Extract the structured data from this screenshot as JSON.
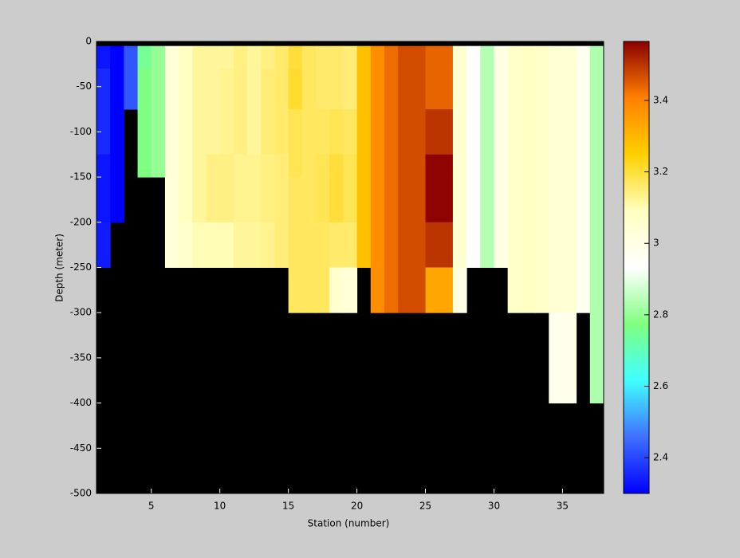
{
  "chart_data": {
    "type": "heatmap",
    "xlabel": "Station (number)",
    "ylabel": "Depth (meter)",
    "x_edges": [
      1,
      2,
      3,
      4,
      5,
      6,
      7,
      8,
      9,
      10,
      11,
      12,
      13,
      14,
      15,
      16,
      17,
      18,
      19,
      20,
      21,
      22,
      23,
      24,
      25,
      26,
      27,
      28,
      29,
      30,
      31,
      32,
      33,
      34,
      35,
      36,
      37,
      38
    ],
    "y_edges": [
      0,
      -5,
      -30,
      -75,
      -125,
      -150,
      -200,
      -250,
      -300,
      -400,
      -500
    ],
    "values": [
      [
        null,
        2.33,
        2.36,
        2.36,
        2.33,
        2.33,
        2.34,
        null,
        null,
        null
      ],
      [
        null,
        2.3,
        2.3,
        2.3,
        2.3,
        2.3,
        null,
        null,
        null,
        null
      ],
      [
        null,
        2.42,
        2.42,
        null,
        null,
        null,
        null,
        null,
        null,
        null
      ],
      [
        null,
        2.75,
        2.77,
        2.77,
        2.77,
        null,
        null,
        null,
        null,
        null
      ],
      [
        null,
        2.8,
        2.8,
        2.8,
        2.8,
        null,
        null,
        null,
        null,
        null
      ],
      [
        null,
        3.03,
        3.03,
        3.03,
        3.03,
        3.03,
        3.03,
        null,
        null,
        null
      ],
      [
        null,
        3.08,
        3.08,
        3.08,
        3.08,
        3.08,
        3.06,
        null,
        null,
        null
      ],
      [
        null,
        3.12,
        3.12,
        3.12,
        3.12,
        3.12,
        3.1,
        null,
        null,
        null
      ],
      [
        null,
        3.12,
        3.12,
        3.12,
        3.14,
        3.14,
        3.1,
        null,
        null,
        null
      ],
      [
        null,
        3.12,
        3.13,
        3.13,
        3.14,
        3.14,
        3.1,
        null,
        null,
        null
      ],
      [
        null,
        3.14,
        3.14,
        3.14,
        3.13,
        3.13,
        3.12,
        null,
        null,
        null
      ],
      [
        null,
        3.12,
        3.12,
        3.12,
        3.13,
        3.13,
        3.12,
        null,
        null,
        null
      ],
      [
        null,
        3.14,
        3.15,
        3.15,
        3.14,
        3.14,
        3.13,
        null,
        null,
        null
      ],
      [
        null,
        3.16,
        3.16,
        3.16,
        3.15,
        3.15,
        3.15,
        null,
        null,
        null
      ],
      [
        null,
        3.2,
        3.21,
        3.18,
        3.18,
        3.17,
        3.17,
        3.17,
        null,
        null
      ],
      [
        null,
        3.17,
        3.17,
        3.17,
        3.17,
        3.17,
        3.17,
        3.17,
        null,
        null
      ],
      [
        null,
        3.16,
        3.16,
        3.17,
        3.18,
        3.18,
        3.17,
        3.17,
        null,
        null
      ],
      [
        null,
        3.16,
        3.16,
        3.18,
        3.2,
        3.2,
        3.16,
        3.05,
        null,
        null
      ],
      [
        null,
        3.15,
        3.15,
        3.17,
        3.18,
        3.18,
        3.16,
        3.03,
        null,
        null
      ],
      [
        null,
        3.28,
        3.28,
        3.28,
        3.28,
        3.28,
        3.28,
        null,
        null,
        null
      ],
      [
        null,
        3.38,
        3.38,
        3.38,
        3.38,
        3.38,
        3.38,
        3.38,
        null,
        null
      ],
      [
        null,
        3.43,
        3.43,
        3.43,
        3.43,
        3.43,
        3.43,
        3.43,
        null,
        null
      ],
      [
        null,
        3.47,
        3.47,
        3.47,
        3.47,
        3.47,
        3.47,
        3.47,
        null,
        null
      ],
      [
        null,
        3.47,
        3.47,
        3.47,
        3.47,
        3.47,
        3.47,
        3.47,
        null,
        null
      ],
      [
        null,
        3.44,
        3.44,
        3.5,
        3.56,
        3.56,
        3.5,
        3.33,
        null,
        null
      ],
      [
        null,
        3.44,
        3.44,
        3.5,
        3.56,
        3.56,
        3.5,
        3.33,
        null,
        null
      ],
      [
        null,
        3.05,
        3.05,
        3.05,
        3.05,
        3.05,
        3.05,
        3.0,
        null,
        null
      ],
      [
        null,
        2.93,
        2.93,
        2.93,
        2.93,
        2.93,
        2.93,
        null,
        null,
        null
      ],
      [
        null,
        2.84,
        2.84,
        2.84,
        2.84,
        2.84,
        2.84,
        null,
        null,
        null
      ],
      [
        null,
        3.0,
        3.0,
        3.0,
        3.0,
        3.0,
        3.0,
        null,
        null,
        null
      ],
      [
        null,
        3.07,
        3.07,
        3.07,
        3.07,
        3.07,
        3.07,
        3.07,
        null,
        null
      ],
      [
        null,
        3.08,
        3.08,
        3.08,
        3.08,
        3.08,
        3.08,
        3.08,
        null,
        null
      ],
      [
        null,
        3.07,
        3.07,
        3.07,
        3.07,
        3.07,
        3.07,
        3.07,
        null,
        null
      ],
      [
        null,
        3.04,
        3.04,
        3.04,
        3.04,
        3.04,
        3.04,
        3.04,
        2.98,
        null
      ],
      [
        null,
        3.04,
        3.04,
        3.04,
        3.04,
        3.04,
        3.04,
        3.04,
        2.98,
        null
      ],
      [
        null,
        2.97,
        2.97,
        2.97,
        2.97,
        2.97,
        2.97,
        2.97,
        null,
        null
      ],
      [
        null,
        2.83,
        2.83,
        2.83,
        2.83,
        2.83,
        2.83,
        2.83,
        2.83,
        null
      ]
    ],
    "xlim": [
      1,
      38
    ],
    "xticks": [
      5,
      10,
      15,
      20,
      25,
      30,
      35
    ],
    "ylim": [
      -500,
      0
    ],
    "yticks": [
      -500,
      -450,
      -400,
      -350,
      -300,
      -250,
      -200,
      -150,
      -100,
      -50,
      0
    ],
    "missing_color": "#000000",
    "colorbar": {
      "clim": [
        2.3,
        3.565
      ],
      "ticks": [
        2.4,
        2.6,
        2.8,
        3,
        3.2,
        3.4
      ],
      "colors": [
        "#0000ff",
        "#4070ff",
        "#40ffff",
        "#80ff80",
        "#ffffff",
        "#ffffc0",
        "#ffd000",
        "#ff8000",
        "#8b0000"
      ]
    }
  }
}
